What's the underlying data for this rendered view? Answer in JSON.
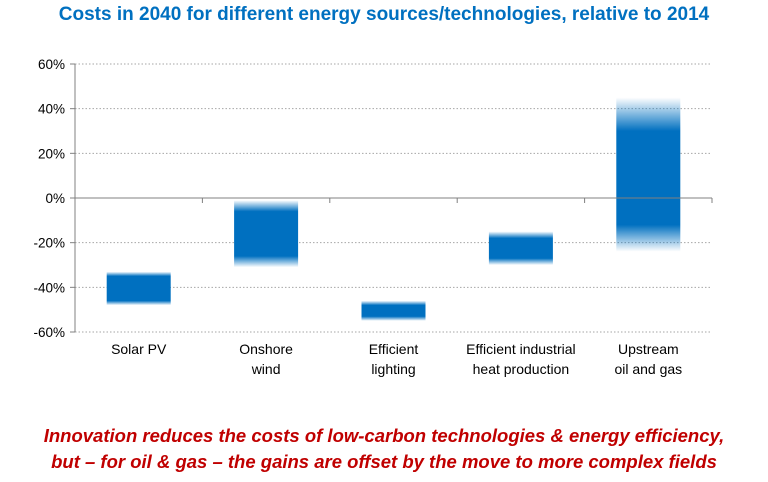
{
  "colors": {
    "title": "#0070C0",
    "bar": "#0070C0",
    "footnote": "#C00000",
    "axis": "#808080",
    "grid": "#A6A6A6",
    "text": "#000000"
  },
  "chart_data": {
    "type": "bar",
    "subtype": "floating-range",
    "title": "Costs in 2040 for different energy sources/technologies, relative to 2014",
    "ylabel": "",
    "xlabel": "",
    "ylim": [
      -60,
      60
    ],
    "yticks": [
      60,
      40,
      20,
      0,
      -20,
      -40,
      -60
    ],
    "ytick_labels": [
      "60%",
      "40%",
      "20%",
      "0%",
      "-20%",
      "-40%",
      "-60%"
    ],
    "grid": true,
    "categories": [
      {
        "lines": [
          "Solar PV"
        ],
        "low": -48,
        "high": -33,
        "fade_bottom": 2,
        "fade_top": 2
      },
      {
        "lines": [
          "Onshore",
          "wind"
        ],
        "low": -31,
        "high": -1,
        "fade_bottom": 5,
        "fade_top": 5
      },
      {
        "lines": [
          "Efficient",
          "lighting"
        ],
        "low": -55,
        "high": -46,
        "fade_bottom": 2,
        "fade_top": 2
      },
      {
        "lines": [
          "Efficient industrial",
          "heat production"
        ],
        "low": -30,
        "high": -15,
        "fade_bottom": 3,
        "fade_top": 3
      },
      {
        "lines": [
          "Upstream",
          "oil and gas"
        ],
        "low": -24,
        "high": 45,
        "fade_bottom": 12,
        "fade_top": 15
      }
    ]
  },
  "footnote": {
    "line1": "Innovation reduces the costs of low-carbon technologies & energy efficiency,",
    "line2": "but – for oil & gas – the gains are offset by the move to more complex fields"
  }
}
